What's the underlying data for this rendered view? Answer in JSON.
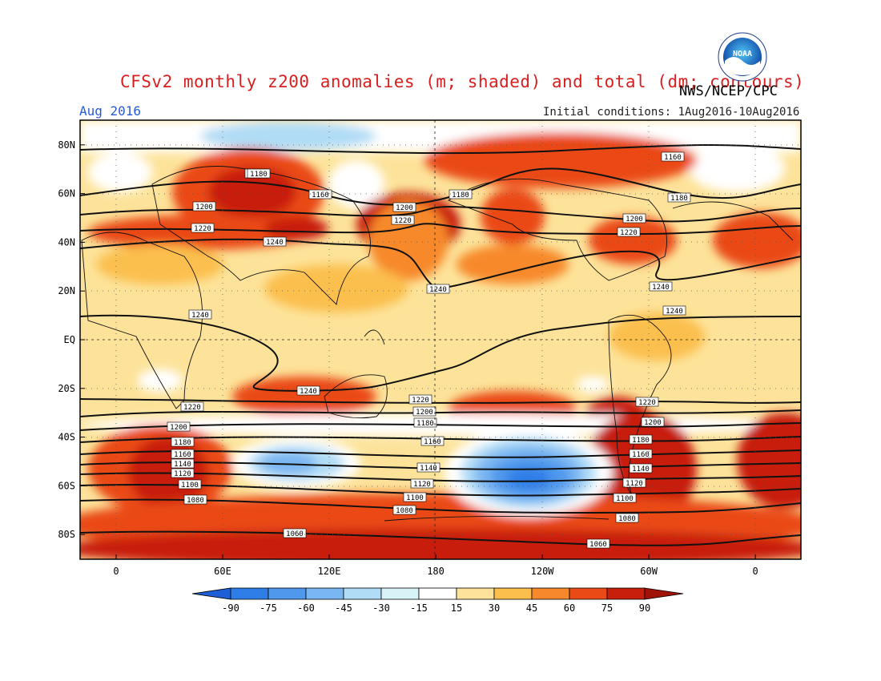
{
  "header": {
    "title": "CFSv2 monthly z200 anomalies (m; shaded) and total (dm; contours)",
    "agency": "NWS/NCEP/CPC",
    "valid_month": "Aug 2016",
    "initial_conditions": "Initial conditions: 1Aug2016-10Aug2016",
    "logo_text": "NOAA"
  },
  "map": {
    "lat_labels": [
      "80N",
      "60N",
      "40N",
      "20N",
      "EQ",
      "20S",
      "40S",
      "60S",
      "80S"
    ],
    "lat_values": [
      80,
      60,
      40,
      20,
      0,
      -20,
      -40,
      -60,
      -80
    ],
    "lon_labels": [
      "0",
      "60E",
      "120E",
      "180",
      "120W",
      "60W",
      "0"
    ],
    "lon_values": [
      0,
      60,
      120,
      180,
      240,
      300,
      360
    ]
  },
  "colorbar": {
    "ticks": [
      "-90",
      "-75",
      "-60",
      "-45",
      "-30",
      "-15",
      "15",
      "30",
      "45",
      "60",
      "75",
      "90"
    ],
    "colors": [
      "#1e5fd6",
      "#2f7ee8",
      "#4f98ec",
      "#7ab6f2",
      "#b0dcf5",
      "#d8f3f8",
      "#ffffff",
      "#fde39a",
      "#fbbf4e",
      "#f7892c",
      "#ea4a16",
      "#c81e0c",
      "#a01308"
    ]
  },
  "contours": [
    {
      "label": "1160",
      "positions": [
        [
          320,
          217
        ],
        [
          1180,
          200
        ],
        [
          400,
          243
        ],
        [
          840,
          196
        ]
      ]
    },
    {
      "label": "1180",
      "positions": [
        [
          323,
          217
        ],
        [
          575,
          243
        ],
        [
          848,
          247
        ]
      ]
    },
    {
      "label": "1200",
      "positions": [
        [
          255,
          258
        ],
        [
          505,
          259
        ],
        [
          792,
          273
        ],
        [
          223,
          533
        ],
        [
          530,
          514
        ],
        [
          815,
          527
        ]
      ]
    },
    {
      "label": "1220",
      "positions": [
        [
          253,
          285
        ],
        [
          503,
          275
        ],
        [
          785,
          290
        ],
        [
          240,
          508
        ],
        [
          525,
          499
        ],
        [
          808,
          502
        ]
      ]
    },
    {
      "label": "1240",
      "positions": [
        [
          343,
          302
        ],
        [
          547,
          361
        ],
        [
          825,
          358
        ],
        [
          250,
          393
        ],
        [
          842,
          388
        ],
        [
          385,
          488
        ]
      ]
    },
    {
      "label": "1180",
      "positions": [
        [
          228,
          552
        ],
        [
          800,
          549
        ]
      ]
    },
    {
      "label": "1160",
      "positions": [
        [
          228,
          567
        ],
        [
          540,
          551
        ],
        [
          800,
          567
        ]
      ]
    },
    {
      "label": "1140",
      "positions": [
        [
          228,
          579
        ],
        [
          535,
          584
        ],
        [
          800,
          585
        ]
      ]
    },
    {
      "label": "1120",
      "positions": [
        [
          228,
          591
        ],
        [
          527,
          604
        ],
        [
          792,
          603
        ]
      ]
    },
    {
      "label": "1100",
      "positions": [
        [
          237,
          605
        ],
        [
          518,
          621
        ],
        [
          780,
          622
        ]
      ]
    },
    {
      "label": "1080",
      "positions": [
        [
          244,
          624
        ],
        [
          505,
          637
        ],
        [
          783,
          647
        ]
      ]
    },
    {
      "label": "1060",
      "positions": [
        [
          368,
          666
        ],
        [
          747,
          679
        ]
      ]
    },
    {
      "label": "1180",
      "positions": [
        [
          531,
          528
        ]
      ]
    }
  ]
}
